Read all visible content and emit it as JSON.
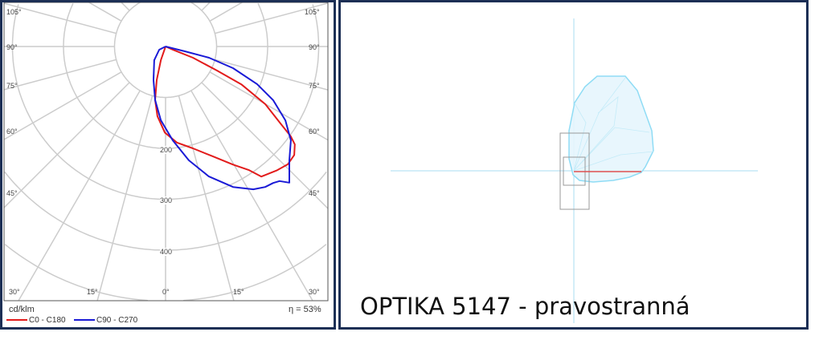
{
  "chart_data": {
    "type": "line",
    "subtype": "polar",
    "unit_label": "cd/klm",
    "efficiency_label": "η = 53%",
    "radial_ticks": [
      "200",
      "300",
      "400"
    ],
    "rings": [
      100,
      200,
      300,
      400,
      500,
      600
    ],
    "angle_step": 15,
    "left_angle_ticks": [
      "105°",
      "90°",
      "75°",
      "60°",
      "45°",
      "30°"
    ],
    "right_angle_ticks": [
      "105°",
      "90°",
      "75°",
      "60°",
      "45°",
      "30°"
    ],
    "bottom_angle_ticks": [
      "30°",
      "15°",
      "0°",
      "15°",
      "30°"
    ],
    "grid": true,
    "legend_position": "bottom-left",
    "series": [
      {
        "name": "C0 - C180",
        "color": "#e21b1b",
        "points": [
          [
            0,
            0
          ],
          [
            -19,
            28
          ],
          [
            -14.7,
            68
          ],
          [
            -11,
            107
          ],
          [
            -6.6,
            138
          ],
          [
            -0.5,
            169
          ],
          [
            6.7,
            190
          ],
          [
            15,
            207
          ],
          [
            23.3,
            235
          ],
          [
            29.7,
            267
          ],
          [
            34,
            293
          ],
          [
            36.3,
            317
          ],
          [
            42,
            327
          ],
          [
            46,
            333
          ],
          [
            49.8,
            330
          ],
          [
            52.8,
            318
          ],
          [
            54.3,
            302
          ],
          [
            56,
            273
          ],
          [
            59.9,
            226
          ],
          [
            63.4,
            166
          ],
          [
            64.9,
            111
          ],
          [
            67.6,
            58
          ],
          [
            66,
            16
          ],
          [
            0,
            0
          ]
        ]
      },
      {
        "name": "C90 - C270",
        "color": "#1a1ad6",
        "points": [
          [
            0,
            0
          ],
          [
            -63,
            14
          ],
          [
            -39.5,
            35
          ],
          [
            -19.7,
            70
          ],
          [
            -11,
            107
          ],
          [
            -3.7,
            145
          ],
          [
            4.4,
            185
          ],
          [
            11.5,
            228
          ],
          [
            18.4,
            269
          ],
          [
            25.6,
            306
          ],
          [
            31.5,
            329
          ],
          [
            35.3,
            338
          ],
          [
            38.2,
            341
          ],
          [
            40.2,
            346
          ],
          [
            42.2,
            361
          ],
          [
            47.3,
            330
          ],
          [
            53.1,
            307
          ],
          [
            58.3,
            276
          ],
          [
            63.4,
            236
          ],
          [
            67.6,
            194
          ],
          [
            72.2,
            139
          ],
          [
            75.5,
            88
          ],
          [
            76,
            39
          ],
          [
            0,
            0
          ]
        ]
      }
    ]
  },
  "caption": "OPTIKA 5147 - pravostranná",
  "colors": {
    "frame": "#1c2f55",
    "grid": "#cccccc",
    "solid_fill": "#e6f5fd",
    "solid_edge": "#8fdcf5",
    "axis": "#a9dcf2"
  }
}
